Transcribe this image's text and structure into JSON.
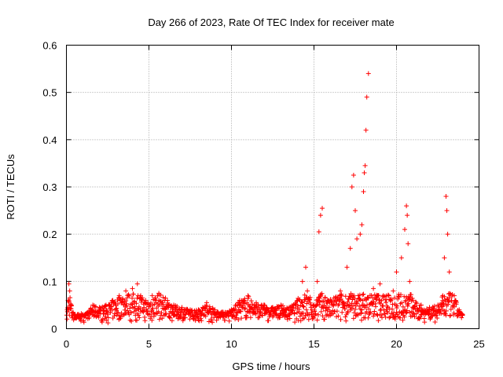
{
  "chart_data": {
    "type": "scatter",
    "title": "Day 266 of 2023, Rate Of TEC Index for receiver mate",
    "xlabel": "GPS time / hours",
    "ylabel": "ROTI / TECUs",
    "xlim": [
      0,
      25
    ],
    "ylim": [
      0,
      0.6
    ],
    "xticks": [
      "0",
      "5",
      "10",
      "15",
      "20",
      "25"
    ],
    "yticks": [
      "0",
      "0.1",
      "0.2",
      "0.3",
      "0.4",
      "0.5",
      "0.6"
    ],
    "grid": true,
    "legend": "none",
    "marker": "plus",
    "color": "#ff0000",
    "series": [
      {
        "values_description_free": true,
        "x": [
          0.05,
          0.1,
          0.15,
          0.2,
          0.3,
          0.4,
          0.5,
          0.7,
          1.0,
          1.3,
          1.6,
          2.0,
          2.4,
          2.8,
          3.2,
          3.6,
          4.0,
          4.3,
          4.5,
          4.8,
          5.2,
          5.6,
          6.0,
          6.5,
          7.0,
          7.5,
          8.0,
          8.5,
          9.0,
          9.5,
          10.0,
          10.5,
          11.0,
          11.5,
          12.0,
          12.5,
          13.0,
          13.5,
          14.0,
          14.3,
          14.5,
          14.6,
          15.0,
          15.2,
          15.3,
          15.4,
          15.5,
          15.8,
          16.2,
          16.6,
          17.0,
          17.2,
          17.3,
          17.4,
          17.5,
          17.6,
          17.8,
          17.9,
          18.0,
          18.05,
          18.1,
          18.15,
          18.2,
          18.3,
          18.6,
          19.0,
          19.4,
          19.8,
          20.0,
          20.3,
          20.5,
          20.6,
          20.65,
          20.7,
          20.8,
          21.0,
          21.5,
          22.0,
          22.5,
          22.8,
          22.9,
          23.0,
          23.05,
          23.1,
          23.2,
          23.5,
          23.8,
          24.0
        ],
        "y": [
          0.04,
          0.06,
          0.095,
          0.08,
          0.05,
          0.035,
          0.03,
          0.025,
          0.03,
          0.035,
          0.05,
          0.045,
          0.05,
          0.06,
          0.07,
          0.08,
          0.085,
          0.095,
          0.07,
          0.06,
          0.07,
          0.075,
          0.065,
          0.05,
          0.045,
          0.04,
          0.04,
          0.055,
          0.04,
          0.035,
          0.04,
          0.06,
          0.07,
          0.055,
          0.05,
          0.045,
          0.05,
          0.045,
          0.06,
          0.1,
          0.13,
          0.08,
          0.05,
          0.1,
          0.205,
          0.24,
          0.255,
          0.06,
          0.065,
          0.08,
          0.13,
          0.17,
          0.3,
          0.325,
          0.25,
          0.19,
          0.2,
          0.22,
          0.29,
          0.33,
          0.345,
          0.42,
          0.49,
          0.54,
          0.085,
          0.095,
          0.07,
          0.08,
          0.12,
          0.15,
          0.21,
          0.26,
          0.24,
          0.18,
          0.1,
          0.06,
          0.05,
          0.045,
          0.05,
          0.07,
          0.15,
          0.28,
          0.25,
          0.2,
          0.12,
          0.07,
          0.04,
          0.03
        ]
      }
    ]
  }
}
